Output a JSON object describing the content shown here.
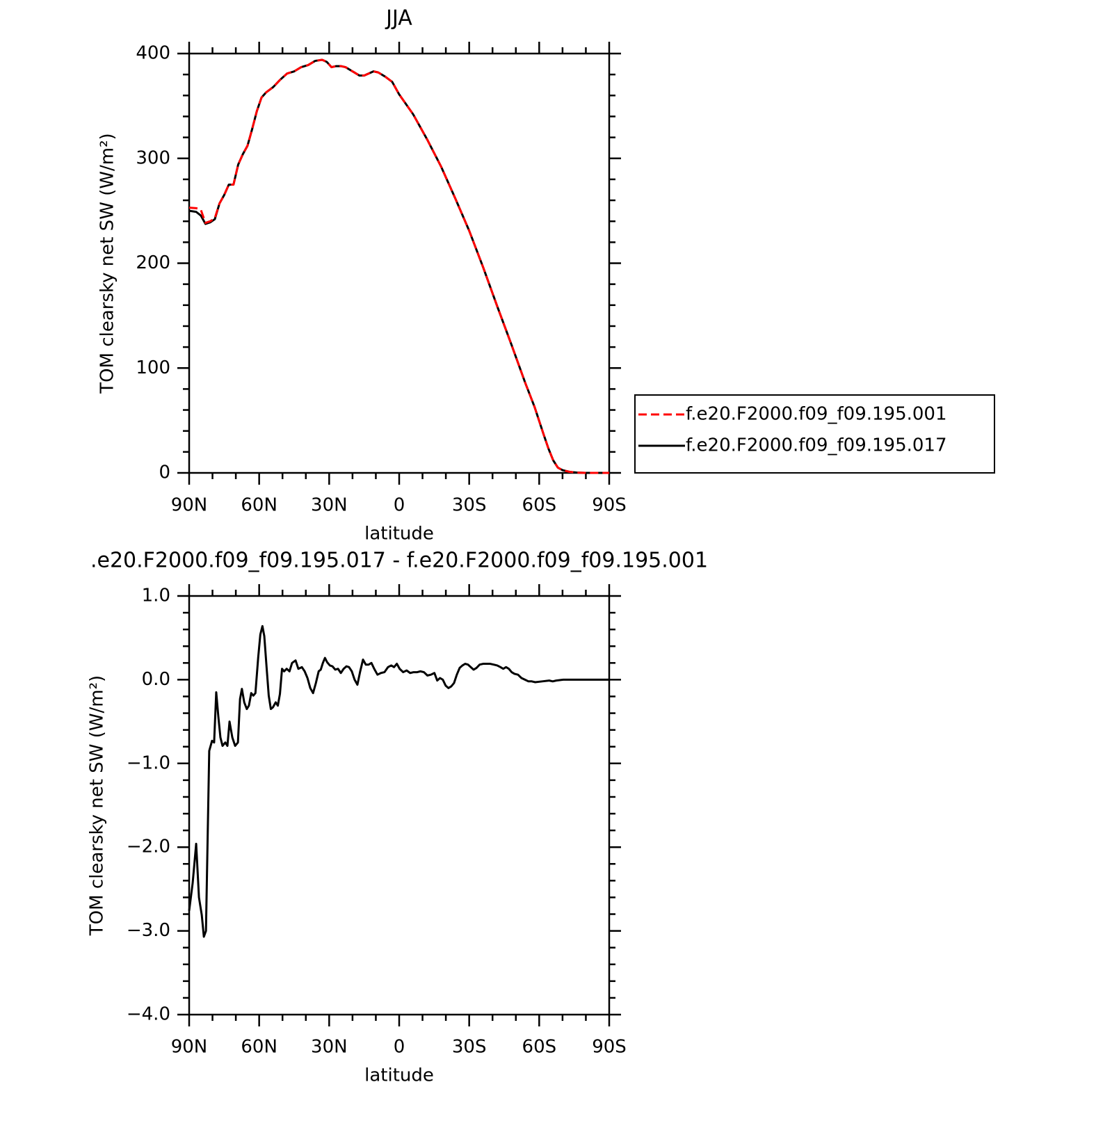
{
  "chart_data": [
    {
      "type": "line",
      "title": "JJA",
      "xlabel": "latitude",
      "ylabel": "TOM clearsky net SW (W/m²)",
      "xlim": [
        90,
        -90
      ],
      "xticks": [
        {
          "value": 90,
          "label": "90N"
        },
        {
          "value": 60,
          "label": "60N"
        },
        {
          "value": 30,
          "label": "30N"
        },
        0,
        {
          "value": -30,
          "label": "30S"
        },
        {
          "value": -60,
          "label": "60S"
        },
        {
          "value": -90,
          "label": "90S"
        }
      ],
      "xminorticks": [
        80,
        70,
        50,
        40,
        20,
        10,
        -10,
        -20,
        -40,
        -50,
        -70,
        -80
      ],
      "ylim": [
        0,
        400
      ],
      "yticks": [
        0,
        100,
        200,
        300,
        400
      ],
      "yminorticks": [
        20,
        40,
        60,
        80,
        120,
        140,
        160,
        180,
        220,
        240,
        260,
        280,
        320,
        340,
        360,
        380
      ],
      "legend": "right",
      "x": [
        90,
        87,
        85,
        83,
        81,
        79,
        77,
        75,
        73,
        71,
        69,
        67,
        65,
        63,
        61,
        59,
        57,
        54,
        51,
        48,
        45,
        42,
        39,
        36,
        33,
        31,
        29,
        27,
        25,
        23,
        20,
        17,
        15,
        13,
        11,
        9,
        6,
        3,
        0,
        -6,
        -12,
        -18,
        -24,
        -30,
        -36,
        -42,
        -48,
        -54,
        -58,
        -62,
        -64,
        -66,
        -68,
        -70,
        -73,
        -76,
        -80,
        -90
      ],
      "series": [
        {
          "name": "f.e20.F2000.f09_f09.195.001",
          "color": "#ff0000",
          "dashed": true,
          "values": [
            253,
            252.5,
            251,
            238.5,
            240,
            243,
            257,
            265,
            275,
            275,
            294,
            304,
            312,
            328,
            345,
            358,
            363,
            368,
            375,
            381,
            383,
            387,
            389,
            393,
            394,
            392,
            387,
            388,
            388,
            387,
            383,
            379,
            379,
            381,
            383,
            382,
            378,
            373,
            361,
            342,
            318,
            292,
            262,
            231,
            196,
            159,
            123,
            86,
            63,
            36,
            23,
            12,
            5,
            2.6,
            1,
            0.3,
            0,
            0
          ]
        },
        {
          "name": "f.e20.F2000.f09_f09.195.017",
          "color": "#000000",
          "dashed": false,
          "values": [
            250,
            249,
            245.5,
            237.5,
            239,
            242,
            257,
            265,
            275,
            275,
            294,
            304,
            312,
            328,
            345,
            358,
            363,
            368,
            375,
            381,
            383,
            387,
            389,
            393,
            394,
            392,
            387,
            388,
            388,
            387,
            383,
            379,
            379,
            381,
            383,
            382,
            378,
            373,
            361,
            342,
            318,
            292,
            262,
            231,
            196,
            159,
            123,
            86,
            63,
            36,
            23,
            12,
            5,
            2.6,
            1,
            0.3,
            0,
            0
          ]
        }
      ]
    },
    {
      "type": "line",
      "title": ".e20.F2000.f09_f09.195.017 - f.e20.F2000.f09_f09.195.001",
      "xlabel": "latitude",
      "ylabel": "TOM clearsky net SW (W/m²)",
      "xlim": [
        90,
        -90
      ],
      "xticks": [
        {
          "value": 90,
          "label": "90N"
        },
        {
          "value": 60,
          "label": "60N"
        },
        {
          "value": 30,
          "label": "30N"
        },
        0,
        {
          "value": -30,
          "label": "30S"
        },
        {
          "value": -60,
          "label": "60S"
        },
        {
          "value": -90,
          "label": "90S"
        }
      ],
      "xminorticks": [
        80,
        70,
        50,
        40,
        20,
        10,
        -10,
        -20,
        -40,
        -50,
        -70,
        -80
      ],
      "ylim": [
        -4,
        1
      ],
      "yticks": [
        {
          "value": -4,
          "label": "−4.0"
        },
        {
          "value": -3,
          "label": "−3.0"
        },
        {
          "value": -2,
          "label": "−2.0"
        },
        {
          "value": -1,
          "label": "−1.0"
        },
        {
          "value": 0,
          "label": "0.0"
        },
        {
          "value": 1,
          "label": "1.0"
        }
      ],
      "yminorticks": [
        -3.8,
        -3.6,
        -3.4,
        -3.2,
        -2.8,
        -2.6,
        -2.4,
        -2.2,
        -1.8,
        -1.6,
        -1.4,
        -1.2,
        -0.8,
        -0.6,
        -0.4,
        -0.2,
        0.2,
        0.4,
        0.6,
        0.8
      ],
      "color": "#000000",
      "x": [
        90,
        88.5,
        87,
        85.8,
        84.6,
        83.7,
        82.8,
        81.4,
        80.2,
        79.3,
        78.4,
        77.5,
        76.6,
        75.7,
        74.5,
        73.6,
        72.7,
        71.5,
        70.3,
        69.1,
        68.2,
        67.4,
        66.4,
        65.3,
        64.4,
        63.4,
        62.5,
        61.6,
        60.4,
        59.5,
        58.6,
        57.8,
        56.8,
        55.9,
        55,
        54.1,
        52.9,
        52,
        51.1,
        50.2,
        49.3,
        48.2,
        47,
        45.9,
        44.4,
        43.2,
        41.7,
        40.5,
        39.3,
        38.1,
        36.9,
        35.7,
        34.5,
        33.6,
        32.7,
        31.8,
        30.9,
        29.7,
        28.6,
        27.4,
        26.2,
        25,
        23.8,
        22.6,
        21.5,
        20.3,
        19.1,
        17.9,
        16.7,
        15.5,
        14.3,
        13.1,
        11.9,
        10.7,
        9.3,
        7.8,
        6.3,
        4.8,
        3.4,
        2.2,
        1,
        -0.2,
        -1.7,
        -3.2,
        -4.7,
        -6.2,
        -7.7,
        -9.1,
        -10.6,
        -12.1,
        -13.6,
        -15.1,
        -16.3,
        -17.5,
        -18.7,
        -19.9,
        -21.1,
        -22.3,
        -23.5,
        -24.7,
        -25.9,
        -27.1,
        -28.3,
        -29.5,
        -30.7,
        -31.9,
        -33.1,
        -34.5,
        -36,
        -37.5,
        -39,
        -40.5,
        -42,
        -43.4,
        -44.6,
        -45.8,
        -47,
        -48.2,
        -49.4,
        -50.9,
        -52.4,
        -53.9,
        -55.4,
        -56.8,
        -58.3,
        -61.3,
        -64.3,
        -65.8,
        -67.3,
        -70.3,
        -90
      ],
      "values": [
        -2.76,
        -2.43,
        -1.96,
        -2.6,
        -2.81,
        -3.07,
        -3.0,
        -0.85,
        -0.73,
        -0.75,
        -0.15,
        -0.44,
        -0.69,
        -0.79,
        -0.75,
        -0.79,
        -0.5,
        -0.69,
        -0.79,
        -0.75,
        -0.23,
        -0.11,
        -0.27,
        -0.35,
        -0.31,
        -0.16,
        -0.19,
        -0.16,
        0.27,
        0.54,
        0.64,
        0.52,
        0.14,
        -0.19,
        -0.35,
        -0.33,
        -0.27,
        -0.31,
        -0.17,
        0.13,
        0.1,
        0.13,
        0.1,
        0.2,
        0.23,
        0.13,
        0.15,
        0.1,
        0.02,
        -0.1,
        -0.16,
        -0.04,
        0.1,
        0.12,
        0.2,
        0.26,
        0.21,
        0.17,
        0.16,
        0.12,
        0.13,
        0.08,
        0.13,
        0.16,
        0.15,
        0.1,
        0,
        -0.06,
        0.1,
        0.24,
        0.18,
        0.18,
        0.2,
        0.13,
        0.06,
        0.08,
        0.09,
        0.15,
        0.17,
        0.15,
        0.19,
        0.13,
        0.09,
        0.11,
        0.08,
        0.09,
        0.09,
        0.1,
        0.09,
        0.05,
        0.06,
        0.08,
        -0.01,
        0.02,
        0,
        -0.07,
        -0.1,
        -0.08,
        -0.04,
        0.06,
        0.14,
        0.17,
        0.19,
        0.18,
        0.15,
        0.12,
        0.14,
        0.18,
        0.19,
        0.19,
        0.19,
        0.18,
        0.17,
        0.15,
        0.13,
        0.15,
        0.13,
        0.09,
        0.07,
        0.06,
        0.02,
        0,
        -0.02,
        -0.02,
        -0.03,
        -0.02,
        -0.01,
        -0.02,
        -0.01,
        0,
        0
      ]
    }
  ]
}
